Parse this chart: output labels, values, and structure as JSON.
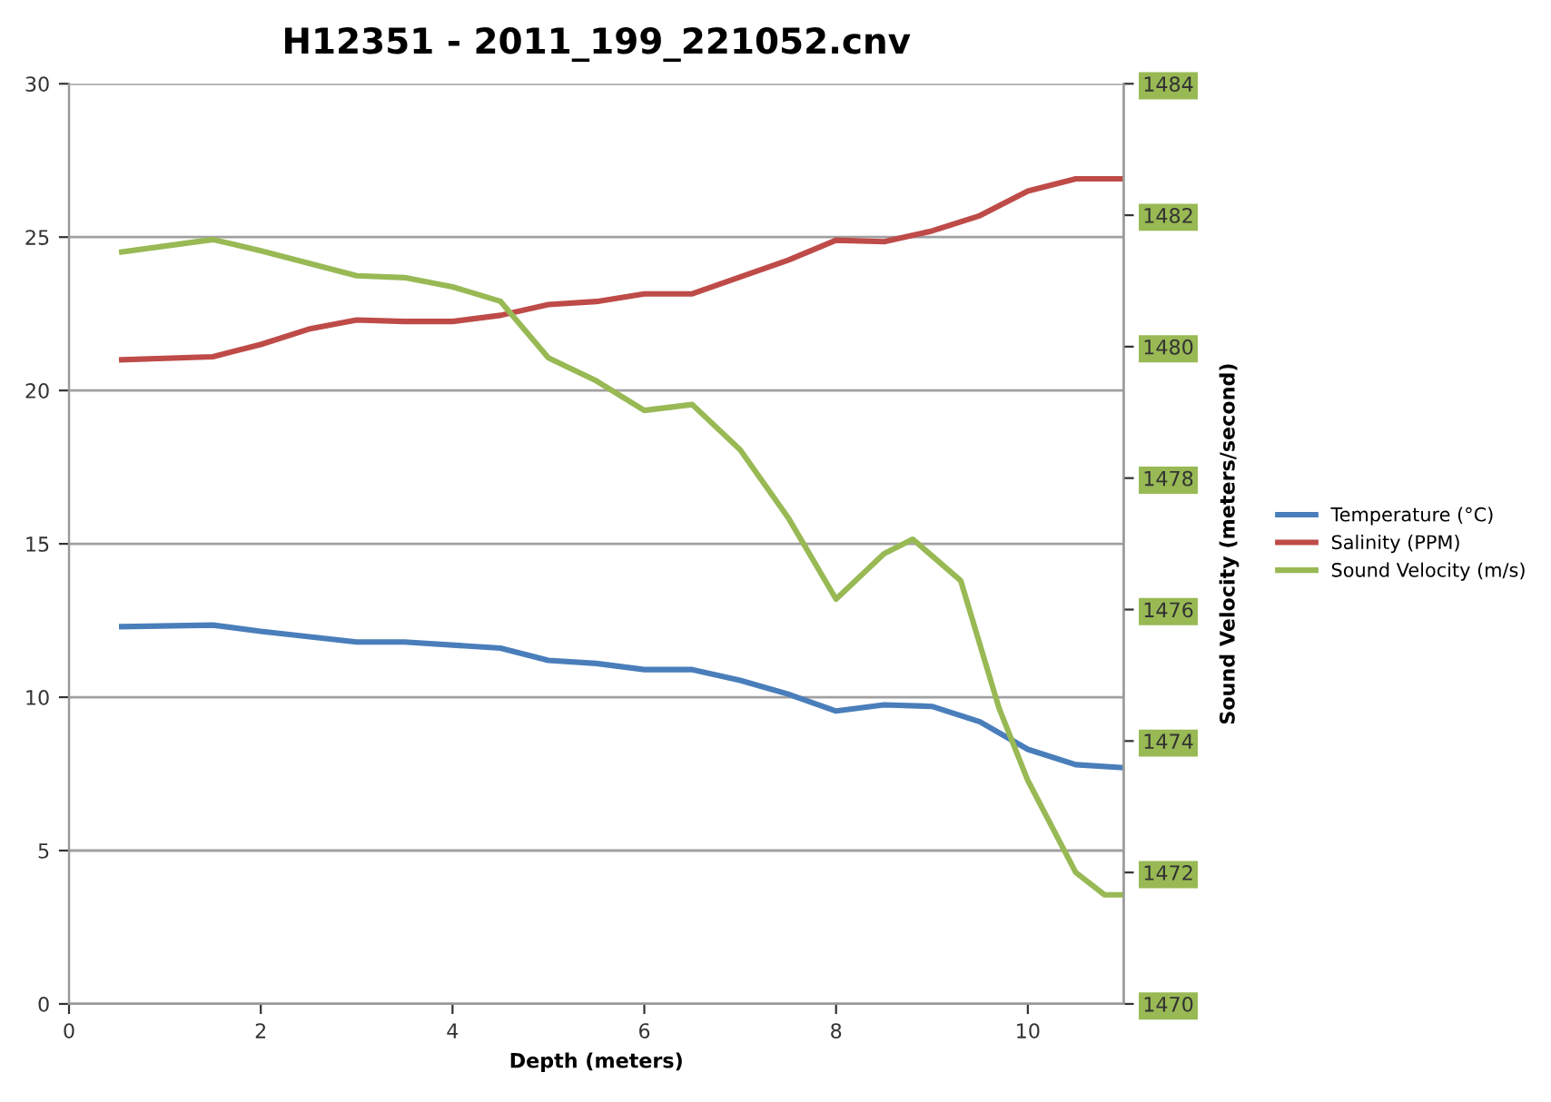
{
  "chart_data": {
    "type": "line",
    "title": "H12351 - 2011_199_221052.cnv",
    "xlabel": "Depth (meters)",
    "y2label": "Sound Velocity (meters/second)",
    "xlim": [
      0,
      11
    ],
    "xticks": [
      0,
      2,
      4,
      6,
      8,
      10
    ],
    "ylim": [
      0,
      30
    ],
    "yticks": [
      0,
      5,
      10,
      15,
      20,
      25,
      30
    ],
    "y2lim": [
      1470,
      1484
    ],
    "y2ticks": [
      1470,
      1472,
      1474,
      1476,
      1478,
      1480,
      1482,
      1484
    ],
    "grid": "y",
    "legend": "right",
    "marker": "none",
    "line_style": "solid",
    "series": [
      {
        "name": "Temperature (°C)",
        "color": "#4a7ebb",
        "x": [
          0.55,
          1.5,
          2,
          3,
          3.5,
          4.5,
          5,
          5.5,
          6,
          6.5,
          7,
          7.5,
          8,
          8.5,
          9,
          9.5,
          10,
          10.5,
          11
        ],
        "values": [
          12.3,
          12.35,
          12.15,
          11.8,
          11.8,
          11.6,
          11.2,
          11.1,
          10.9,
          10.9,
          10.55,
          10.1,
          9.55,
          9.75,
          9.7,
          9.2,
          8.3,
          7.8,
          7.7
        ]
      },
      {
        "name": "Salinity (PPM)",
        "color": "#be4b48",
        "x": [
          0.55,
          1.5,
          2,
          2.5,
          3,
          3.5,
          4,
          4.5,
          5,
          5.5,
          6,
          6.5,
          7,
          7.5,
          8,
          8.5,
          9,
          9.5,
          10,
          10.5,
          11
        ],
        "values": [
          21.0,
          21.1,
          21.5,
          22.0,
          22.3,
          22.25,
          22.25,
          22.45,
          22.8,
          22.9,
          23.15,
          23.15,
          23.7,
          24.25,
          24.9,
          24.85,
          25.2,
          25.7,
          26.5,
          26.9,
          26.9
        ]
      },
      {
        "name": "Sound Velocity (m/s)",
        "color": "#98b954",
        "axis": "y2",
        "x": [
          0.55,
          1.5,
          2,
          3,
          3.5,
          4,
          4.5,
          5,
          5.5,
          6,
          6.5,
          7,
          7.5,
          8,
          8.5,
          8.8,
          9.3,
          9.7,
          10,
          10.5,
          10.8,
          11
        ],
        "values": [
          1481.44,
          1481.63,
          1481.46,
          1481.08,
          1481.05,
          1480.91,
          1480.69,
          1479.83,
          1479.48,
          1479.03,
          1479.12,
          1478.43,
          1477.4,
          1476.16,
          1476.85,
          1477.07,
          1476.44,
          1474.5,
          1473.4,
          1472.0,
          1471.66,
          1471.66
        ]
      }
    ]
  }
}
